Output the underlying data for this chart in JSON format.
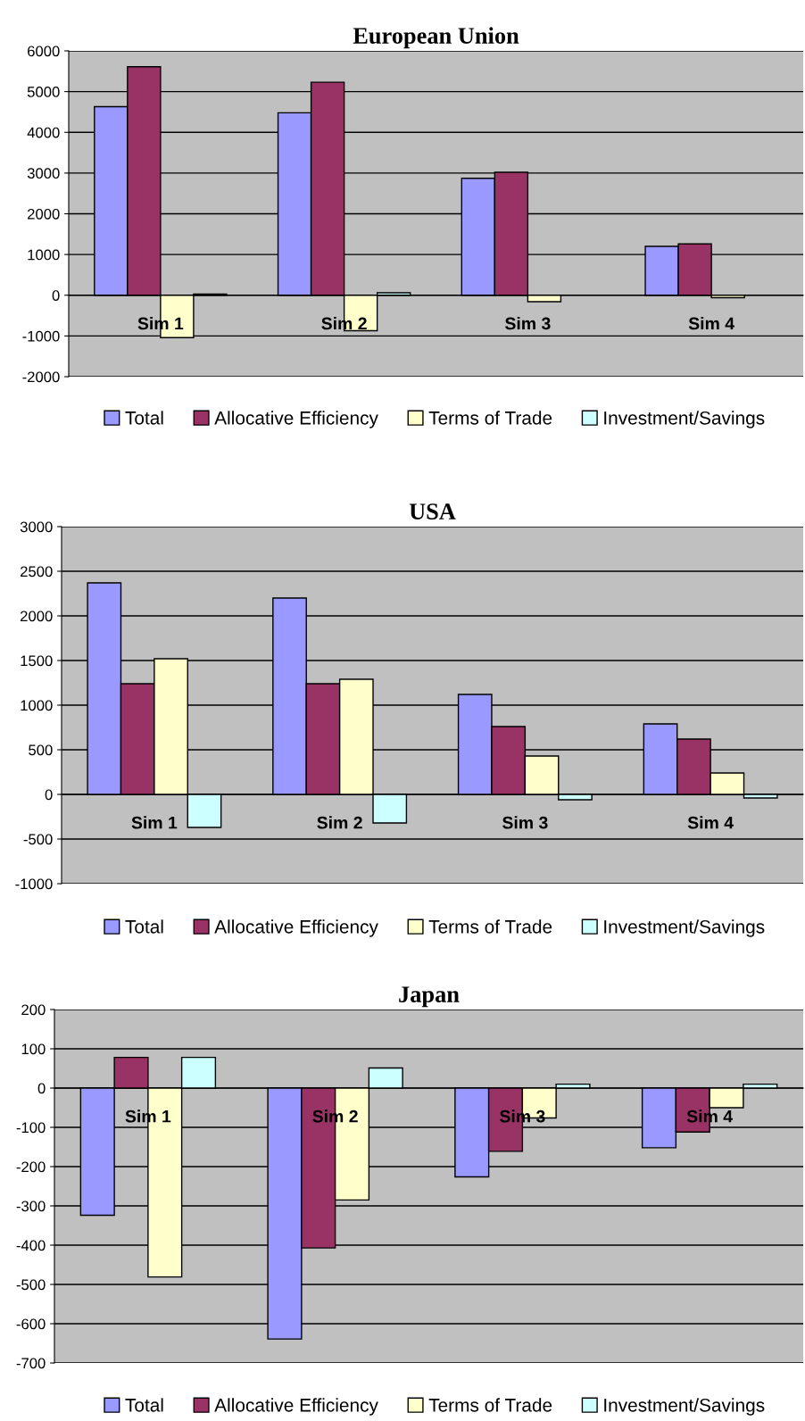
{
  "chart_data": [
    {
      "type": "bar",
      "title": "European Union",
      "categories": [
        "Sim 1",
        "Sim 2",
        "Sim 3",
        "Sim 4"
      ],
      "ylim": [
        -2000,
        6000
      ],
      "yticks": [
        -2000,
        -1000,
        0,
        1000,
        2000,
        3000,
        4000,
        5000,
        6000
      ],
      "grid": "y",
      "legend": "bottom",
      "series": [
        {
          "name": "Total",
          "color": "#9999ff",
          "values": [
            4630,
            4480,
            2870,
            1200
          ]
        },
        {
          "name": "Allocative Efficiency",
          "color": "#993366",
          "values": [
            5610,
            5230,
            3020,
            1260
          ]
        },
        {
          "name": "Terms of Trade",
          "color": "#ffffcc",
          "values": [
            -1040,
            -870,
            -160,
            -60
          ]
        },
        {
          "name": "Investment/Savings",
          "color": "#ccffff",
          "values": [
            30,
            60,
            null,
            null
          ]
        }
      ]
    },
    {
      "type": "bar",
      "title": "USA",
      "categories": [
        "Sim 1",
        "Sim 2",
        "Sim 3",
        "Sim 4"
      ],
      "ylim": [
        -1000,
        3000
      ],
      "yticks": [
        -1000,
        -500,
        0,
        500,
        1000,
        1500,
        2000,
        2500,
        3000
      ],
      "grid": "y",
      "legend": "bottom",
      "series": [
        {
          "name": "Total",
          "color": "#9999ff",
          "values": [
            2370,
            2200,
            1120,
            790
          ]
        },
        {
          "name": "Allocative Efficiency",
          "color": "#993366",
          "values": [
            1240,
            1240,
            760,
            620
          ]
        },
        {
          "name": "Terms of Trade",
          "color": "#ffffcc",
          "values": [
            1520,
            1290,
            430,
            240
          ]
        },
        {
          "name": "Investment/Savings",
          "color": "#ccffff",
          "values": [
            -370,
            -320,
            -60,
            -40
          ]
        }
      ]
    },
    {
      "type": "bar",
      "title": "Japan",
      "categories": [
        "Sim 1",
        "Sim 2",
        "Sim 3",
        "Sim 4"
      ],
      "ylim": [
        -700,
        200
      ],
      "yticks": [
        -700,
        -600,
        -500,
        -400,
        -300,
        -200,
        -100,
        0,
        100,
        200
      ],
      "grid": "y",
      "legend": "bottom",
      "series": [
        {
          "name": "Total",
          "color": "#9999ff",
          "values": [
            -324,
            -639,
            -226,
            -152
          ]
        },
        {
          "name": "Allocative Efficiency",
          "color": "#993366",
          "values": [
            78,
            -407,
            -161,
            -112
          ]
        },
        {
          "name": "Terms of Trade",
          "color": "#ffffcc",
          "values": [
            -481,
            -285,
            -76,
            -50
          ]
        },
        {
          "name": "Investment/Savings",
          "color": "#ccffff",
          "values": [
            78,
            51,
            10,
            10
          ]
        }
      ]
    }
  ]
}
